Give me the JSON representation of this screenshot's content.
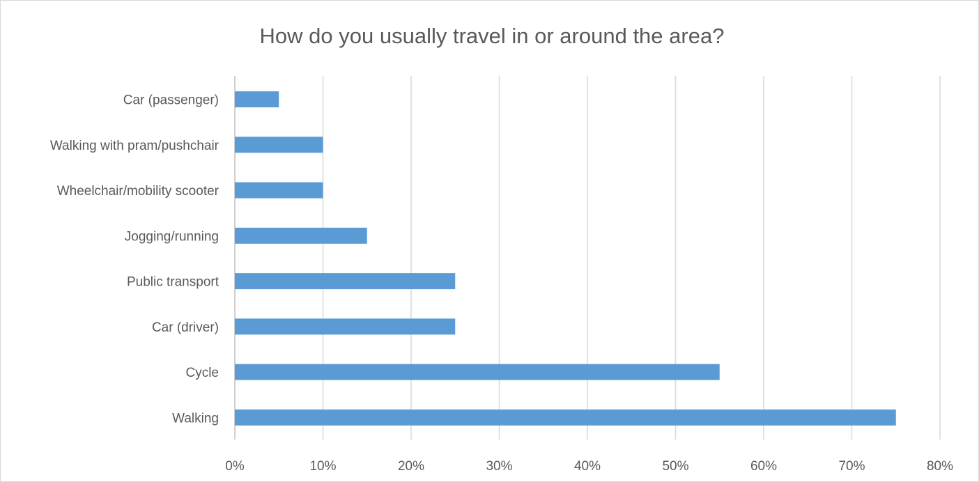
{
  "chart_data": {
    "type": "bar",
    "orientation": "horizontal",
    "title": "How do you usually travel in or around the area?",
    "xlabel": "",
    "ylabel": "",
    "categories": [
      "Car (passenger)",
      "Walking with pram/pushchair",
      "Wheelchair/mobility scooter",
      "Jogging/running",
      "Public transport",
      "Car (driver)",
      "Cycle",
      "Walking"
    ],
    "values": [
      5,
      10,
      10,
      15,
      25,
      25,
      55,
      75
    ],
    "value_unit": "%",
    "xlim": [
      0,
      80
    ],
    "xticks": [
      "0%",
      "10%",
      "20%",
      "30%",
      "40%",
      "50%",
      "60%",
      "70%",
      "80%"
    ],
    "grid": true,
    "legend": "none",
    "bar_color": "#5b9bd5"
  }
}
